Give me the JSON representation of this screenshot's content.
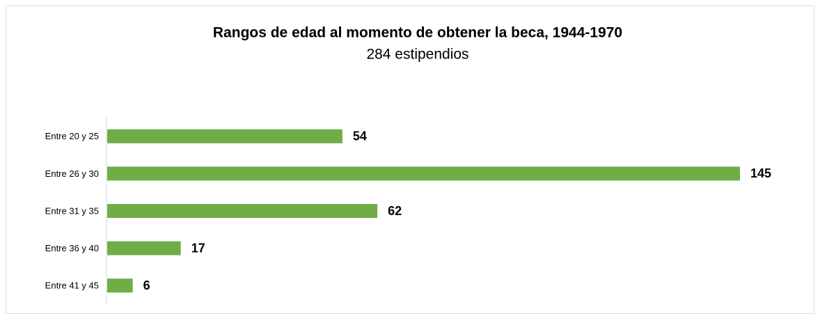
{
  "chart_data": {
    "type": "bar",
    "orientation": "horizontal",
    "title": "Rangos de edad al momento de obtener la beca, 1944-1970",
    "subtitle": "284 estipendios",
    "categories": [
      "Entre 20 y 25",
      "Entre 26 y 30",
      "Entre 31 y 35",
      "Entre 36 y 40",
      "Entre 41 y 45"
    ],
    "values": [
      54,
      145,
      62,
      17,
      6
    ],
    "color": "#70ad47"
  }
}
